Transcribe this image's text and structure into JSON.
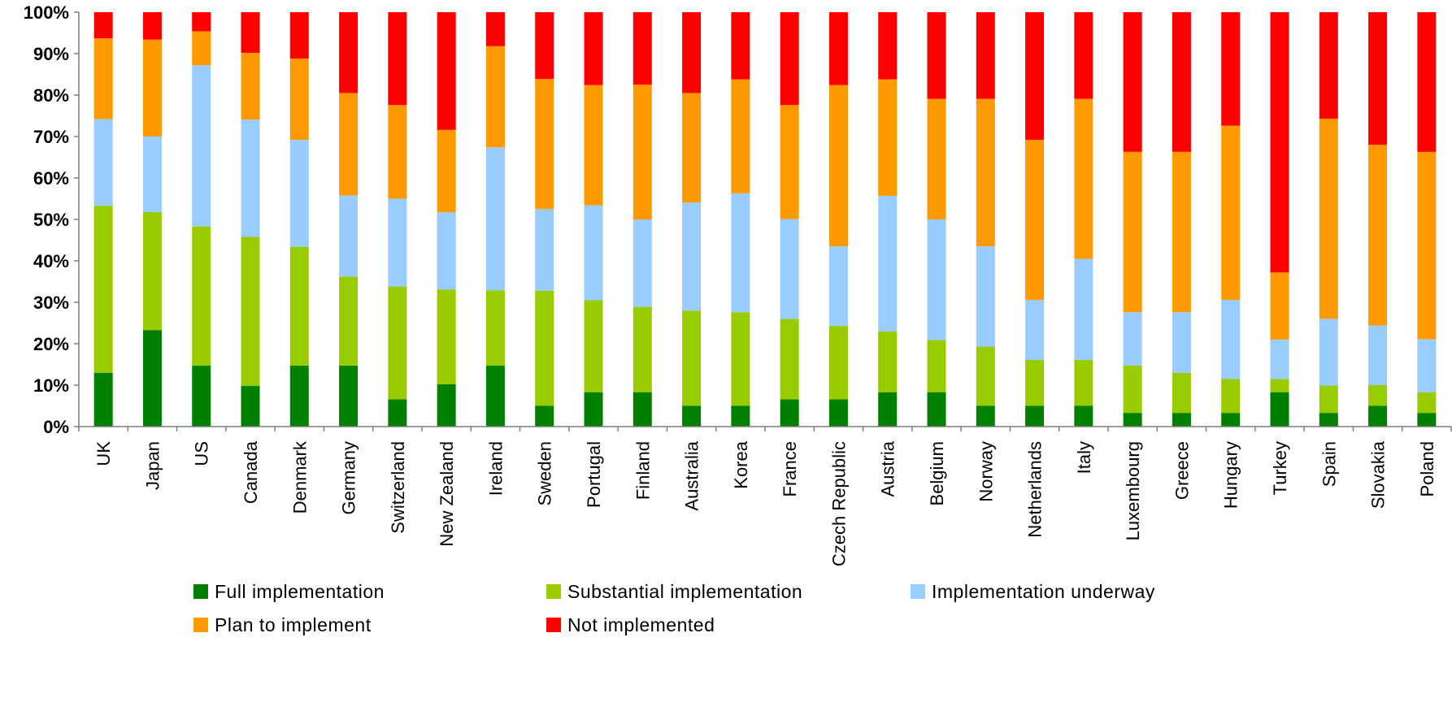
{
  "chart_data": {
    "type": "bar",
    "stacked": true,
    "percent": true,
    "categories": [
      "UK",
      "Japan",
      "US",
      "Canada",
      "Denmark",
      "Germany",
      "Switzerland",
      "New Zealand",
      "Ireland",
      "Sweden",
      "Portugal",
      "Finland",
      "Australia",
      "Korea",
      "France",
      "Czech Republic",
      "Austria",
      "Belgium",
      "Norway",
      "Netherlands",
      "Italy",
      "Luxembourg",
      "Greece",
      "Hungary",
      "Turkey",
      "Spain",
      "Slovakia",
      "Poland"
    ],
    "series": [
      {
        "name": "Full implementation",
        "color": "#008000",
        "values": [
          13,
          23.3,
          14.7,
          9.8,
          14.7,
          14.7,
          6.6,
          10.2,
          14.7,
          5,
          8.3,
          8.3,
          5,
          5,
          6.6,
          6.6,
          8.3,
          8.3,
          5,
          5,
          5,
          3.3,
          3.3,
          3.3,
          8.3,
          3.3,
          5,
          3.3
        ]
      },
      {
        "name": "Substantial implementation",
        "color": "#99cc00",
        "values": [
          40.3,
          28.5,
          33.6,
          36,
          28.7,
          21.5,
          27.2,
          22.9,
          18.2,
          27.8,
          22.2,
          20.6,
          23,
          22.6,
          19.4,
          17.7,
          14.7,
          12.6,
          14.3,
          11.1,
          11.1,
          11.4,
          9.7,
          8.2,
          3.2,
          6.6,
          5,
          5
        ]
      },
      {
        "name": "Implementation underway",
        "color": "#99ccff",
        "values": [
          20.9,
          18.2,
          38.9,
          28.3,
          25.8,
          19.6,
          21.2,
          18.6,
          34.5,
          19.7,
          22.9,
          21.1,
          26.1,
          28.7,
          24.1,
          19.2,
          32.7,
          29.1,
          24.2,
          14.5,
          24.4,
          12.9,
          14.6,
          19.1,
          9.5,
          16.1,
          14.4,
          12.8
        ]
      },
      {
        "name": "Plan to implement",
        "color": "#ff9900",
        "values": [
          19.5,
          23.4,
          8.2,
          16.1,
          19.6,
          24.7,
          22.6,
          19.9,
          24.4,
          31.4,
          29,
          32.5,
          26.4,
          27.5,
          27.5,
          38.9,
          28.1,
          29.1,
          35.6,
          38.6,
          38.6,
          38.7,
          38.7,
          42,
          16.2,
          48.3,
          43.6,
          45.2
        ]
      },
      {
        "name": "Not implemented",
        "color": "#ff0000",
        "values": [
          6.3,
          6.6,
          4.6,
          9.8,
          11.2,
          19.5,
          22.4,
          28.4,
          8.2,
          16.1,
          17.6,
          17.5,
          19.5,
          16.2,
          22.4,
          17.6,
          16.2,
          20.9,
          20.9,
          30.8,
          20.9,
          33.7,
          33.7,
          27.4,
          62.8,
          25.7,
          32,
          33.7
        ]
      }
    ],
    "yticks": [
      "0%",
      "10%",
      "20%",
      "30%",
      "40%",
      "50%",
      "60%",
      "70%",
      "80%",
      "90%",
      "100%"
    ],
    "ylim": [
      0,
      100
    ],
    "title": "",
    "xlabel": "",
    "ylabel": "",
    "legend": "bottom",
    "grid": false
  }
}
